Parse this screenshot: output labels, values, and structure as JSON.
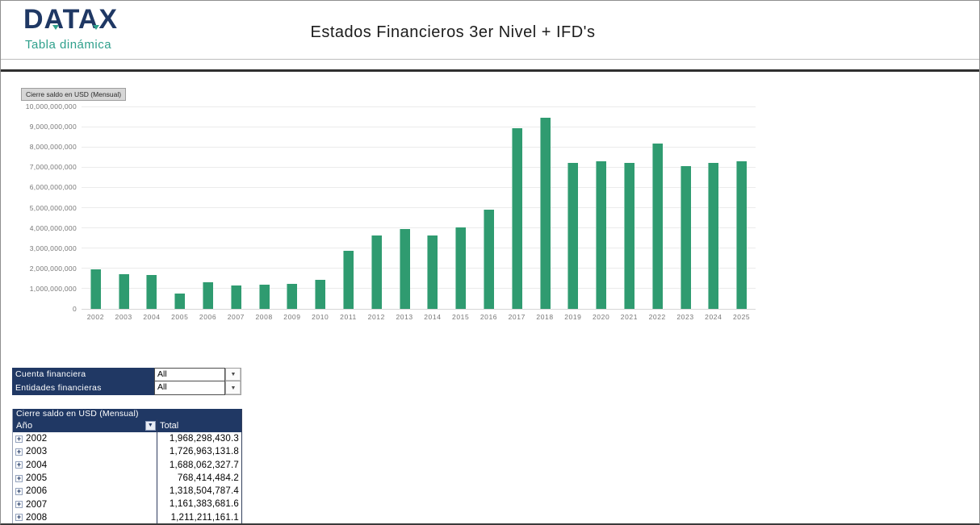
{
  "header": {
    "logo_text": "DATAX",
    "logo_subtitle": "Tabla dinámica",
    "title": "Estados Financieros 3er Nivel + IFD's"
  },
  "chart_data": {
    "type": "bar",
    "field_button": "Cierre saldo en USD (Mensual)",
    "categories": [
      "2002",
      "2003",
      "2004",
      "2005",
      "2006",
      "2007",
      "2008",
      "2009",
      "2010",
      "2011",
      "2012",
      "2013",
      "2014",
      "2015",
      "2016",
      "2017",
      "2018",
      "2019",
      "2020",
      "2021",
      "2022",
      "2023",
      "2024",
      "2025"
    ],
    "values": [
      1968298430.3,
      1726963131.8,
      1688062327.7,
      768414484.2,
      1318504787.4,
      1161383681.6,
      1211211161.1,
      1250000000,
      1420000000,
      2880000000,
      3620000000,
      3950000000,
      3620000000,
      4030000000,
      4920000000,
      8930000000,
      9450000000,
      7220000000,
      7280000000,
      7220000000,
      8150000000,
      7050000000,
      7220000000,
      7280000000
    ],
    "title": "Cierre saldo en USD (Mensual)",
    "xlabel": "",
    "ylabel": "",
    "ylim": [
      0,
      10000000000
    ],
    "ytick_step": 1000000000,
    "grid": true,
    "legend": "none",
    "bar_color": "#2f9b70"
  },
  "filters": {
    "rows": [
      {
        "label": "Cuenta financiera",
        "value": "All"
      },
      {
        "label": "Entidades financieras",
        "value": "All"
      }
    ]
  },
  "pivot": {
    "title": "Cierre saldo en USD (Mensual)",
    "columns": [
      "Año",
      "Total"
    ],
    "rows": [
      {
        "year": "2002",
        "total": "1,968,298,430.3"
      },
      {
        "year": "2003",
        "total": "1,726,963,131.8"
      },
      {
        "year": "2004",
        "total": "1,688,062,327.7"
      },
      {
        "year": "2005",
        "total": "768,414,484.2"
      },
      {
        "year": "2006",
        "total": "1,318,504,787.4"
      },
      {
        "year": "2007",
        "total": "1,161,383,681.6"
      },
      {
        "year": "2008",
        "total": "1,211,211,161.1"
      }
    ]
  },
  "colors": {
    "navy": "#203864",
    "teal": "#2fa08c",
    "bar_green": "#2f9b70"
  }
}
